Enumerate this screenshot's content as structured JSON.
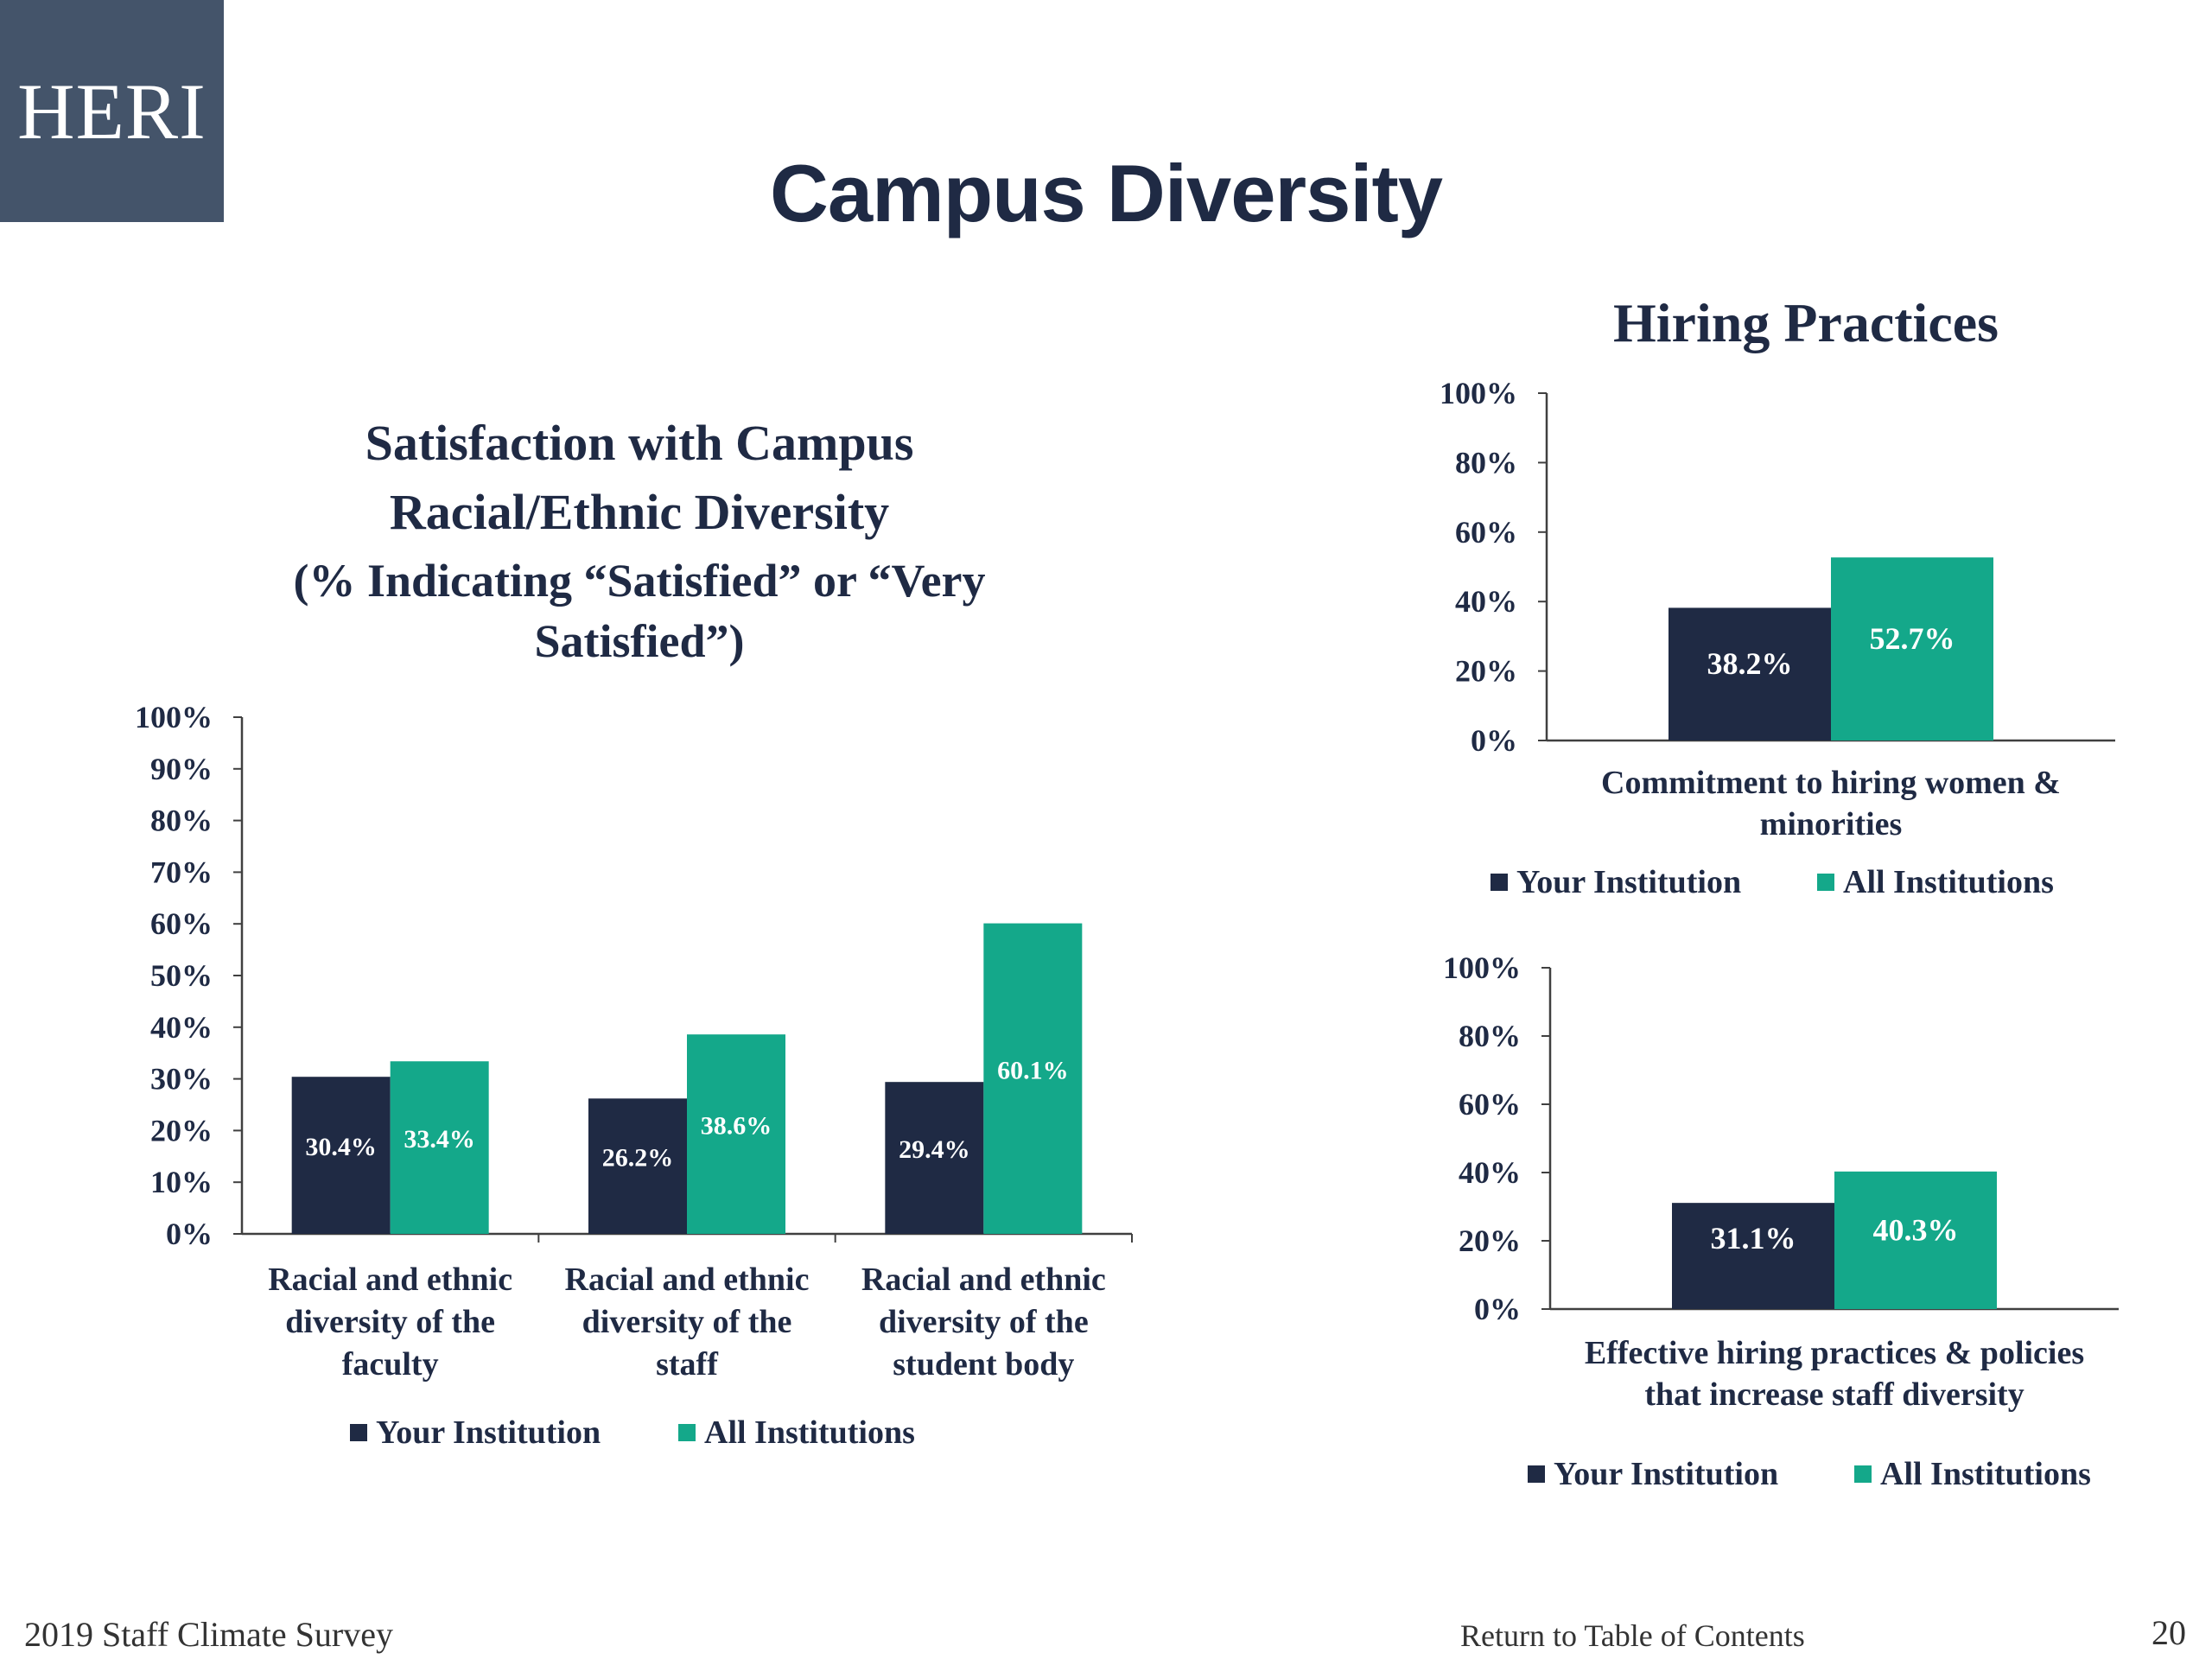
{
  "logo_text": "HERI",
  "page_title": "Campus Diversity",
  "colors": {
    "your": "#1f2a44",
    "all": "#14a88a",
    "text": "#1f2a44",
    "axis": "#404040"
  },
  "footer": {
    "left": "2019 Staff Climate Survey",
    "link": "Return to Table of Contents",
    "page": "20"
  },
  "chart_data": [
    {
      "type": "bar",
      "title_lines": [
        "Satisfaction with Campus",
        "Racial/Ethnic Diversity",
        "(% Indicating “Satisfied” or “Very",
        "Satisfied”)"
      ],
      "categories": [
        [
          "Racial and ethnic",
          "diversity of the",
          "faculty"
        ],
        [
          "Racial and ethnic",
          "diversity of the",
          "staff"
        ],
        [
          "Racial and ethnic",
          "diversity of the",
          "student body"
        ]
      ],
      "series": [
        {
          "name": "Your Institution",
          "values": [
            30.4,
            26.2,
            29.4
          ],
          "labels": [
            "30.4%",
            "26.2%",
            "29.4%"
          ]
        },
        {
          "name": "All Institutions",
          "values": [
            33.4,
            38.6,
            60.1
          ],
          "labels": [
            "33.4%",
            "38.6%",
            "60.1%"
          ]
        }
      ],
      "ylim": [
        0,
        100
      ],
      "yticks": [
        "0%",
        "10%",
        "20%",
        "30%",
        "40%",
        "50%",
        "60%",
        "70%",
        "80%",
        "90%",
        "100%"
      ],
      "legend": "bottom"
    },
    {
      "type": "bar",
      "title_lines": [
        "Hiring Practices"
      ],
      "categories": [
        [
          "Commitment to hiring women &",
          "minorities"
        ]
      ],
      "series": [
        {
          "name": "Your Institution",
          "values": [
            38.2
          ],
          "labels": [
            "38.2%"
          ]
        },
        {
          "name": "All Institutions",
          "values": [
            52.7
          ],
          "labels": [
            "52.7%"
          ]
        }
      ],
      "ylim": [
        0,
        100
      ],
      "yticks": [
        "0%",
        "20%",
        "40%",
        "60%",
        "80%",
        "100%"
      ],
      "legend": "bottom"
    },
    {
      "type": "bar",
      "title_lines": [],
      "categories": [
        [
          "Effective hiring practices & policies",
          "that increase staff diversity"
        ]
      ],
      "series": [
        {
          "name": "Your Institution",
          "values": [
            31.1
          ],
          "labels": [
            "31.1%"
          ]
        },
        {
          "name": "All Institutions",
          "values": [
            40.3
          ],
          "labels": [
            "40.3%"
          ]
        }
      ],
      "ylim": [
        0,
        100
      ],
      "yticks": [
        "0%",
        "20%",
        "40%",
        "60%",
        "80%",
        "100%"
      ],
      "legend": "bottom"
    }
  ]
}
